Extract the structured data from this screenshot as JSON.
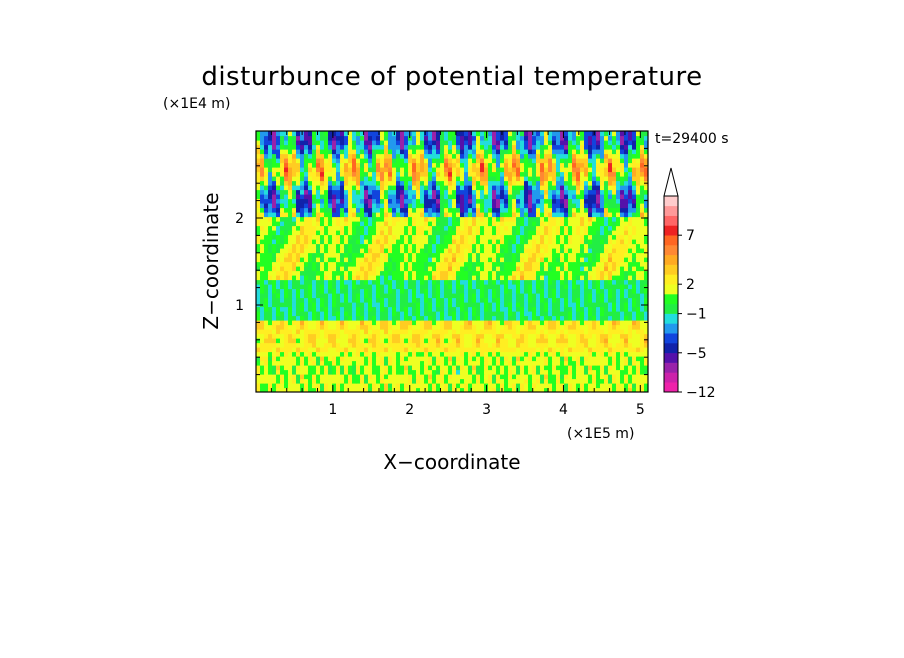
{
  "chart_data": {
    "type": "heatmap",
    "title": "disturbunce of potential temperature",
    "xlabel": "X−coordinate",
    "ylabel": "Z−coordinate",
    "x_unit": "(×1E5 m)",
    "y_unit": "(×1E4 m)",
    "time_label": "t=29400 s",
    "xlim": [
      0,
      5.1
    ],
    "ylim": [
      0,
      3.0
    ],
    "x_ticks": [
      1,
      2,
      3,
      4,
      5
    ],
    "y_ticks": [
      1,
      2
    ],
    "colorbar": {
      "levels": [
        -12,
        -10,
        -8,
        -6,
        -5,
        -4,
        -3,
        -2,
        -1,
        0,
        1,
        2,
        3,
        4,
        5,
        6,
        7,
        8,
        9,
        10
      ],
      "colors": [
        "#ee22aa",
        "#cc22aa",
        "#9922aa",
        "#5511aa",
        "#1122aa",
        "#1144dd",
        "#2299ee",
        "#22dddd",
        "#22ee44",
        "#22ff22",
        "#eeff22",
        "#ffee22",
        "#ffcc22",
        "#ffaa22",
        "#ff8833",
        "#ff6622",
        "#ee2222",
        "#ff6666",
        "#ff9999",
        "#ffcccc"
      ],
      "labels": [
        "7",
        "2",
        "−1",
        "−5",
        "−12"
      ],
      "extend": "max"
    },
    "layers": [
      {
        "z_range": [
          0,
          0.45
        ],
        "dominant": "yellow",
        "mean": 1.5
      },
      {
        "z_range": [
          0.45,
          0.85
        ],
        "dominant": "orange-yellow",
        "mean": 2.5
      },
      {
        "z_range": [
          0.85,
          1.3
        ],
        "dominant": "green",
        "mean": -0.5
      },
      {
        "z_range": [
          1.3,
          2.0
        ],
        "dominant": "yellow-orange",
        "mean": 1.0
      },
      {
        "z_range": [
          2.0,
          3.0
        ],
        "dominant": "mixed wave pattern",
        "mean": 0.0
      }
    ]
  }
}
